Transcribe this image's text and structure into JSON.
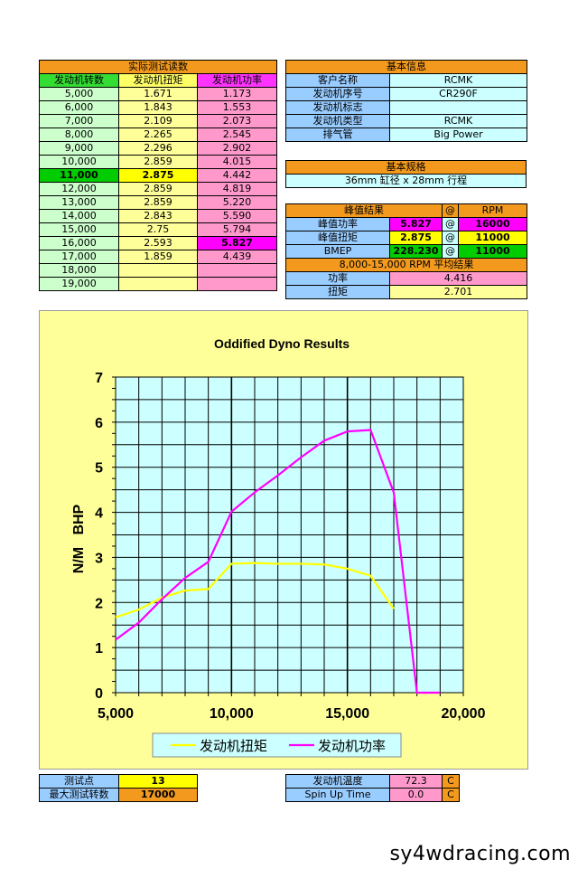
{
  "readings": {
    "title": "实际测试读数",
    "headers": [
      "发动机转数",
      "发动机扭矩",
      "发动机功率"
    ],
    "rows": [
      [
        "5,000",
        "1.671",
        "1.173"
      ],
      [
        "6,000",
        "1.843",
        "1.553"
      ],
      [
        "7,000",
        "2.109",
        "2.073"
      ],
      [
        "8,000",
        "2.265",
        "2.545"
      ],
      [
        "9,000",
        "2.296",
        "2.902"
      ],
      [
        "10,000",
        "2.859",
        "4.015"
      ],
      [
        "11,000",
        "2.875",
        "4.442"
      ],
      [
        "12,000",
        "2.859",
        "4.819"
      ],
      [
        "13,000",
        "2.859",
        "5.220"
      ],
      [
        "14,000",
        "2.843",
        "5.590"
      ],
      [
        "15,000",
        "2.75",
        "5.794"
      ],
      [
        "16,000",
        "2.593",
        "5.827"
      ],
      [
        "17,000",
        "1.859",
        "4.439"
      ],
      [
        "18,000",
        "",
        ""
      ],
      [
        "19,000",
        "",
        ""
      ]
    ]
  },
  "basic_info": {
    "title": "基本信息",
    "rows": [
      [
        "客户名称",
        "RCMK"
      ],
      [
        "发动机序号",
        "CR290F"
      ],
      [
        "发动机标志",
        ""
      ],
      [
        "发动机类型",
        "RCMK"
      ],
      [
        "排气管",
        "Big Power"
      ]
    ]
  },
  "specs": {
    "title": "基本规格",
    "value": "36mm 缸径 x 28mm 行程"
  },
  "peak": {
    "title": "峰值结果",
    "at": "@",
    "rpm_header": "RPM",
    "rows": [
      [
        "峰值功率",
        "5.827",
        "16000"
      ],
      [
        "峰值扭矩",
        "2.875",
        "11000"
      ],
      [
        "BMEP",
        "228.230",
        "11000"
      ]
    ],
    "avg_title": "8,000-15,000 RPM 平均结果",
    "avg_rows": [
      [
        "功率",
        "4.416"
      ],
      [
        "扭矩",
        "2.701"
      ]
    ]
  },
  "test_points": {
    "rows": [
      [
        "测试点",
        "13"
      ],
      [
        "最大测试转数",
        "17000"
      ]
    ]
  },
  "engine_temp": {
    "rows": [
      [
        "发动机温度",
        "72.3",
        "C"
      ],
      [
        "Spin Up Time",
        "0.0",
        "C"
      ]
    ]
  },
  "watermark": "sy4wdracing.com",
  "chart_data": {
    "type": "line",
    "title": "Oddified Dyno Results",
    "ylabel": "N/M   BHP",
    "xlabel": "",
    "xlim": [
      5000,
      20000
    ],
    "ylim": [
      0,
      7
    ],
    "xticks": [
      "5,000",
      "10,000",
      "15,000",
      "20,000"
    ],
    "yticks": [
      "0",
      "1",
      "2",
      "3",
      "4",
      "5",
      "6",
      "7"
    ],
    "grid": true,
    "legend_position": "bottom",
    "x": [
      5000,
      6000,
      7000,
      8000,
      9000,
      10000,
      11000,
      12000,
      13000,
      14000,
      15000,
      16000,
      17000,
      18000,
      19000
    ],
    "series": [
      {
        "name": "发动机扭矩",
        "color": "#ffff00",
        "values": [
          1.671,
          1.843,
          2.109,
          2.265,
          2.296,
          2.859,
          2.875,
          2.859,
          2.859,
          2.843,
          2.75,
          2.593,
          1.859,
          null,
          null
        ]
      },
      {
        "name": "发动机功率",
        "color": "#ff00ff",
        "values": [
          1.173,
          1.553,
          2.073,
          2.545,
          2.902,
          4.015,
          4.442,
          4.819,
          5.22,
          5.59,
          5.794,
          5.827,
          4.439,
          0,
          0
        ]
      }
    ],
    "plot_bg": "#ccffff",
    "panel_bg": "#ffff99"
  }
}
